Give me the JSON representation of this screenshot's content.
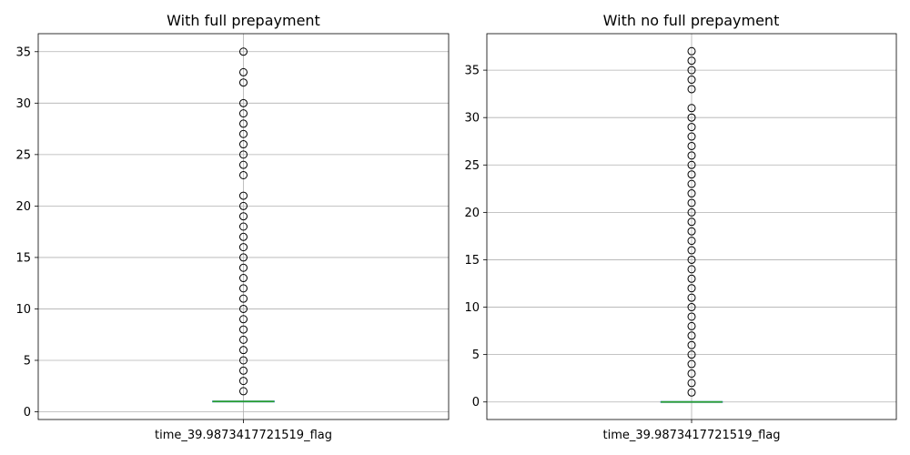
{
  "chart_data": [
    {
      "type": "box",
      "title": "With full prepayment",
      "categories": [
        "time_39.9873417721519_flag"
      ],
      "ylim": [
        -0.75,
        36.75
      ],
      "yticks": [
        0,
        5,
        10,
        15,
        20,
        25,
        30,
        35
      ],
      "grid": true,
      "colors": {
        "box": "#1f77b4",
        "median": "#2ca02c",
        "whisker": "#1f77b4",
        "flier": "#000000",
        "grid": "#b0b0b0"
      },
      "box": {
        "q1": 1,
        "median": 1,
        "q3": 1,
        "whisker_low": 1,
        "whisker_high": 1
      },
      "fliers": [
        2,
        3,
        4,
        5,
        6,
        7,
        8,
        9,
        10,
        11,
        12,
        13,
        14,
        15,
        16,
        17,
        18,
        19,
        20,
        21,
        23,
        24,
        25,
        26,
        27,
        28,
        29,
        30,
        32,
        33,
        35
      ]
    },
    {
      "type": "box",
      "title": "With no full prepayment",
      "categories": [
        "time_39.9873417721519_flag"
      ],
      "ylim": [
        -1.85,
        38.85
      ],
      "yticks": [
        0,
        5,
        10,
        15,
        20,
        25,
        30,
        35
      ],
      "grid": true,
      "colors": {
        "box": "#1f77b4",
        "median": "#2ca02c",
        "whisker": "#1f77b4",
        "flier": "#000000",
        "grid": "#b0b0b0"
      },
      "box": {
        "q1": 0,
        "median": 0,
        "q3": 0,
        "whisker_low": 0,
        "whisker_high": 0
      },
      "fliers": [
        1,
        2,
        3,
        4,
        5,
        6,
        7,
        8,
        9,
        10,
        11,
        12,
        13,
        14,
        15,
        16,
        17,
        18,
        19,
        20,
        21,
        22,
        23,
        24,
        25,
        26,
        27,
        28,
        29,
        30,
        31,
        33,
        34,
        35,
        36,
        37
      ]
    }
  ]
}
